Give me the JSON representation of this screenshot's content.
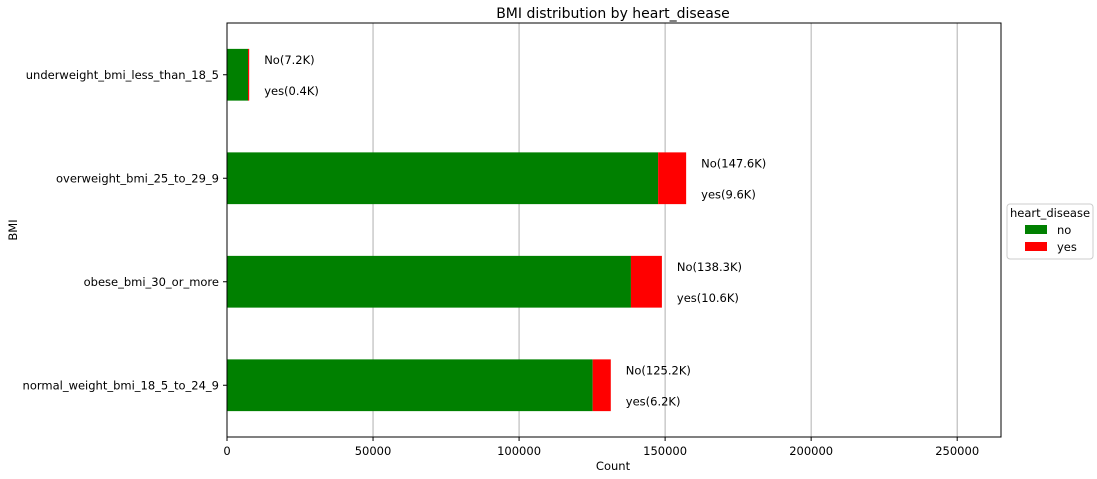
{
  "chart_data": {
    "type": "bar",
    "orientation": "horizontal",
    "stacked": true,
    "title": "BMI distribution by heart_disease",
    "xlabel": "Count",
    "ylabel": "BMI",
    "xlim": [
      0,
      265000
    ],
    "xticks": [
      0,
      50000,
      100000,
      150000,
      200000,
      250000
    ],
    "xtick_labels": [
      "0",
      "50000",
      "100000",
      "150000",
      "200000",
      "250000"
    ],
    "grid": "x",
    "categories": [
      "underweight_bmi_less_than_18_5",
      "overweight_bmi_25_to_29_9",
      "obese_bmi_30_or_more",
      "normal_weight_bmi_18_5_to_24_9"
    ],
    "series": [
      {
        "name": "no",
        "color": "#008000",
        "values": [
          7200,
          147600,
          138300,
          125200
        ],
        "data_labels": [
          "No(7.2K)",
          "No(147.6K)",
          "No(138.3K)",
          "No(125.2K)"
        ]
      },
      {
        "name": "yes",
        "color": "#ff0000",
        "values": [
          400,
          9600,
          10600,
          6200
        ],
        "data_labels": [
          "yes(0.4K)",
          "yes(9.6K)",
          "yes(10.6K)",
          "yes(6.2K)"
        ]
      }
    ],
    "legend": {
      "title": "heart_disease",
      "position": "right"
    }
  }
}
